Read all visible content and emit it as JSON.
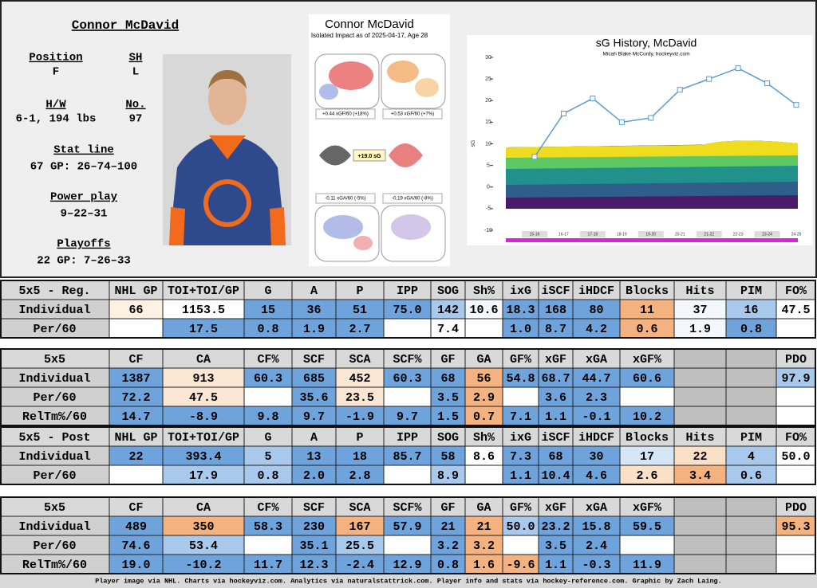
{
  "player": {
    "name": "Connor McDavid",
    "fields": [
      {
        "label": "Position",
        "value": "F"
      },
      {
        "label": "SH",
        "value": "L"
      },
      {
        "label": "H/W",
        "value": "6-1, 194 lbs"
      },
      {
        "label": "No.",
        "value": "97"
      },
      {
        "label": "Stat line",
        "value": "67 GP: 26–74–100"
      },
      {
        "label": "Power play",
        "value": "9–22–31"
      },
      {
        "label": "Playoffs",
        "value": "22 GP: 7–26–33"
      }
    ]
  },
  "impact": {
    "title": "Connor McDavid",
    "subtitle": "Isolated Impact as of 2025-04-17, Age 28",
    "total": "+19.0 sG",
    "offence": [
      "+0.44 xGF/60 (+18%)",
      "+0.53 xGF/60 (+7%)"
    ],
    "defence": [
      "-0.11 xGA/60 (-5%)",
      "-0.19 xGA/60 (-8%)"
    ]
  },
  "sg_history": {
    "type": "line",
    "title": "sG History, McDavid",
    "subtitle": "Micah Blake McCurdy, hockeyviz.com",
    "y_label": "sG",
    "categories": [
      "15-16",
      "16-17",
      "17-18",
      "18-19",
      "19-20",
      "20-21",
      "21-22",
      "22-23",
      "23-24",
      "24-25"
    ],
    "values": [
      7,
      17,
      20.5,
      15,
      16,
      22.5,
      25,
      27.5,
      24,
      19
    ],
    "color": "#5b9bd0",
    "ylim": [
      -10,
      30
    ],
    "yticks": [
      -10,
      -5,
      0,
      5,
      10,
      15,
      20,
      25,
      30
    ]
  },
  "tables": [
    {
      "rows": [
        {
          "cells": [
            "5x5 - Reg.",
            "NHL GP",
            "TOI+TOI/GP",
            "G",
            "A",
            "P",
            "IPP",
            "SOG",
            "Sh%",
            "ixG",
            "iSCF",
            "iHDCF",
            "Blocks",
            "Hits",
            "PIM",
            "FO%"
          ]
        },
        {
          "cells": [
            "Individual",
            "66",
            "1153.5",
            "15",
            "36",
            "51",
            "75.0",
            "142",
            "10.6",
            "18.3",
            "168",
            "80",
            "11",
            "37",
            "16",
            "47.5"
          ],
          "colors": [
            "#fdf1e4",
            "#ffffff",
            "#6fa3dc",
            "#6fa3dc",
            "#6fa3dc",
            "#6fa3dc",
            "#a9c9ec",
            "#f4f8fc",
            "#6fa3dc",
            "#6fa3dc",
            "#6fa3dc",
            "#f3b27f",
            "#f4f8fc",
            "#a9c9ec",
            "#ffffff"
          ]
        },
        {
          "cells": [
            "Per/60",
            null,
            "17.5",
            "0.8",
            "1.9",
            "2.7",
            null,
            "7.4",
            null,
            "1.0",
            "8.7",
            "4.2",
            "0.6",
            "1.9",
            "0.8",
            null
          ],
          "colors": [
            "#ffffff",
            "#6fa3dc",
            "#6fa3dc",
            "#6fa3dc",
            "#6fa3dc",
            "#ffffff",
            "#ffffff",
            "#ffffff",
            "#6fa3dc",
            "#6fa3dc",
            "#6fa3dc",
            "#f3b27f",
            "#f4f8fc",
            "#6fa3dc",
            "#ffffff"
          ]
        }
      ]
    },
    {
      "rows": [
        {
          "cells": [
            "5x5",
            "CF",
            "CA",
            "CF%",
            "SCF",
            "SCA",
            "SCF%",
            "GF",
            "GA",
            "GF%",
            "xGF",
            "xGA",
            "xGF%",
            null,
            null,
            "PDO"
          ]
        },
        {
          "cells": [
            "Individual",
            "1387",
            "913",
            "60.3",
            "685",
            "452",
            "60.3",
            "68",
            "56",
            "54.8",
            "68.7",
            "44.7",
            "60.6",
            null,
            null,
            "97.9"
          ],
          "colors": [
            "#6fa3dc",
            "#fbe6d3",
            "#6fa3dc",
            "#6fa3dc",
            "#fbe6d3",
            "#6fa3dc",
            "#6fa3dc",
            "#f3b27f",
            "#6fa3dc",
            "#6fa3dc",
            "#6fa3dc",
            "#6fa3dc",
            "#bfbfbf",
            "#bfbfbf",
            "#a9c9ec"
          ]
        },
        {
          "cells": [
            "Per/60",
            "72.2",
            "47.5",
            null,
            "35.6",
            "23.5",
            null,
            "3.5",
            "2.9",
            null,
            "3.6",
            "2.3",
            null,
            null,
            null,
            null
          ],
          "colors": [
            "#6fa3dc",
            "#fbe6d3",
            "#ffffff",
            "#6fa3dc",
            "#fbe6d3",
            "#ffffff",
            "#6fa3dc",
            "#f3b27f",
            "#ffffff",
            "#6fa3dc",
            "#6fa3dc",
            "#ffffff",
            "#bfbfbf",
            "#bfbfbf",
            "#ffffff"
          ]
        },
        {
          "cells": [
            "RelTm%/60",
            "14.7",
            "-8.9",
            "9.8",
            "9.7",
            "-1.9",
            "9.7",
            "1.5",
            "0.7",
            "7.1",
            "1.1",
            "-0.1",
            "10.2",
            null,
            null,
            null
          ],
          "colors": [
            "#6fa3dc",
            "#6fa3dc",
            "#6fa3dc",
            "#6fa3dc",
            "#6fa3dc",
            "#6fa3dc",
            "#6fa3dc",
            "#f3b27f",
            "#6fa3dc",
            "#6fa3dc",
            "#6fa3dc",
            "#6fa3dc",
            "#bfbfbf",
            "#bfbfbf",
            "#ffffff"
          ]
        }
      ]
    },
    {
      "rows": [
        {
          "cells": [
            "5x5 - Post",
            "NHL GP",
            "TOI+TOI/GP",
            "G",
            "A",
            "P",
            "IPP",
            "SOG",
            "Sh%",
            "ixG",
            "iSCF",
            "iHDCF",
            "Blocks",
            "Hits",
            "PIM",
            "FO%"
          ]
        },
        {
          "cells": [
            "Individual",
            "22",
            "393.4",
            "5",
            "13",
            "18",
            "85.7",
            "58",
            "8.6",
            "7.3",
            "68",
            "30",
            "17",
            "22",
            "4",
            "50.0"
          ],
          "colors": [
            "#6fa3dc",
            "#6fa3dc",
            "#a9c9ec",
            "#6fa3dc",
            "#6fa3dc",
            "#6fa3dc",
            "#6fa3dc",
            "#ffffff",
            "#6fa3dc",
            "#6fa3dc",
            "#6fa3dc",
            "#d6e6f6",
            "#fbe0c8",
            "#a9c9ec",
            "#ffffff"
          ]
        },
        {
          "cells": [
            "Per/60",
            null,
            "17.9",
            "0.8",
            "2.0",
            "2.8",
            null,
            "8.9",
            null,
            "1.1",
            "10.4",
            "4.6",
            "2.6",
            "3.4",
            "0.6",
            null
          ],
          "colors": [
            "#ffffff",
            "#a9c9ec",
            "#a9c9ec",
            "#6fa3dc",
            "#6fa3dc",
            "#ffffff",
            "#a9c9ec",
            "#ffffff",
            "#6fa3dc",
            "#6fa3dc",
            "#6fa3dc",
            "#fbe0c8",
            "#f3b27f",
            "#a9c9ec",
            "#ffffff"
          ]
        }
      ]
    },
    {
      "rows": [
        {
          "cells": [
            "5x5",
            "CF",
            "CA",
            "CF%",
            "SCF",
            "SCA",
            "SCF%",
            "GF",
            "GA",
            "GF%",
            "xGF",
            "xGA",
            "xGF%",
            null,
            null,
            "PDO"
          ]
        },
        {
          "cells": [
            "Individual",
            "489",
            "350",
            "58.3",
            "230",
            "167",
            "57.9",
            "21",
            "21",
            "50.0",
            "23.2",
            "15.8",
            "59.5",
            null,
            null,
            "95.3"
          ],
          "colors": [
            "#6fa3dc",
            "#f3b27f",
            "#6fa3dc",
            "#6fa3dc",
            "#f3b27f",
            "#6fa3dc",
            "#6fa3dc",
            "#f3b27f",
            "#a9c9ec",
            "#6fa3dc",
            "#6fa3dc",
            "#6fa3dc",
            "#bfbfbf",
            "#bfbfbf",
            "#f3b27f"
          ]
        },
        {
          "cells": [
            "Per/60",
            "74.6",
            "53.4",
            null,
            "35.1",
            "25.5",
            null,
            "3.2",
            "3.2",
            null,
            "3.5",
            "2.4",
            null,
            null,
            null,
            null
          ],
          "colors": [
            "#6fa3dc",
            "#a9c9ec",
            "#ffffff",
            "#6fa3dc",
            "#a9c9ec",
            "#ffffff",
            "#6fa3dc",
            "#f3b27f",
            "#ffffff",
            "#6fa3dc",
            "#6fa3dc",
            "#ffffff",
            "#bfbfbf",
            "#bfbfbf",
            "#ffffff"
          ]
        },
        {
          "cells": [
            "RelTm%/60",
            "19.0",
            "-10.2",
            "11.7",
            "12.3",
            "-2.4",
            "12.9",
            "0.8",
            "1.6",
            "-9.6",
            "1.1",
            "-0.3",
            "11.9",
            null,
            null,
            null
          ],
          "colors": [
            "#6fa3dc",
            "#6fa3dc",
            "#6fa3dc",
            "#6fa3dc",
            "#6fa3dc",
            "#6fa3dc",
            "#6fa3dc",
            "#f3b27f",
            "#f3b27f",
            "#6fa3dc",
            "#6fa3dc",
            "#6fa3dc",
            "#bfbfbf",
            "#bfbfbf",
            "#ffffff"
          ]
        }
      ]
    }
  ],
  "footer": "Player image via NHL. Charts via hockeyviz.com. Analytics via naturalstattrick.com. Player info and stats via hockey-reference.com. Graphic by Zach Laing."
}
